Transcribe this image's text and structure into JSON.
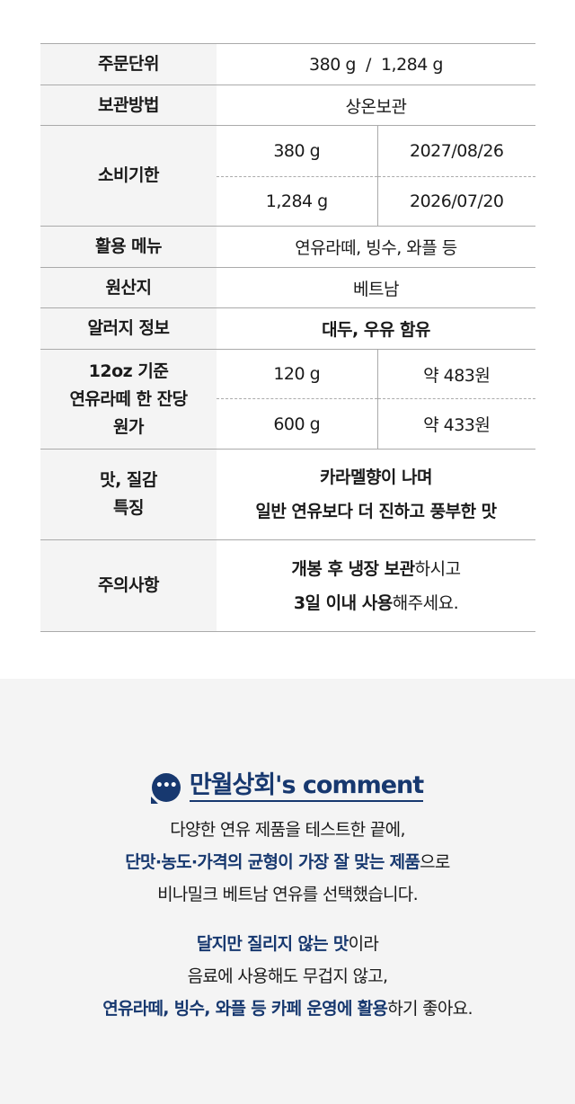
{
  "table": {
    "order_unit": {
      "label": "주문단위",
      "value": "380 g  /  1,284 g"
    },
    "storage": {
      "label": "보관방법",
      "value": "상온보관"
    },
    "expiry": {
      "label": "소비기한",
      "rows": [
        {
          "size": "380 g",
          "date": "2027/08/26"
        },
        {
          "size": "1,284 g",
          "date": "2026/07/20"
        }
      ]
    },
    "menu": {
      "label": "활용 메뉴",
      "value": "연유라떼, 빙수, 와플 등"
    },
    "origin": {
      "label": "원산지",
      "value": "베트남"
    },
    "allergy": {
      "label": "알러지 정보",
      "value": "대두, 우유 함유"
    },
    "cost": {
      "label_lines": [
        "12oz 기준",
        "연유라떼 한 잔당",
        "원가"
      ],
      "rows": [
        {
          "size": "120 g",
          "price": "약 483원"
        },
        {
          "size": "600 g",
          "price": "약 433원"
        }
      ]
    },
    "taste": {
      "label_lines": [
        "맛, 질감",
        "특징"
      ],
      "lines": [
        "카라멜향이 나며",
        "일반 연유보다 더 진하고 풍부한 맛"
      ]
    },
    "caution": {
      "label": "주의사항",
      "line1_bold": "개봉 후 냉장 보관",
      "line1_rest": "하시고",
      "line2_bold": "3일 이내 사용",
      "line2_rest": "해주세요."
    }
  },
  "comment": {
    "icon": "speech-bubble-icon",
    "title": "만월상회's comment",
    "accent": "#17386f",
    "p1": {
      "l1": "다양한 연유 제품을 테스트한 끝에,",
      "l2_bold": "단맛·농도·가격의 균형이 가장 잘 맞는 제품",
      "l2_rest": "으로",
      "l3": "비나밀크 베트남 연유를 선택했습니다."
    },
    "p2": {
      "l1_bold": "달지만 질리지 않는 맛",
      "l1_rest": "이라",
      "l2": "음료에 사용해도 무겁지 않고,",
      "l3_bold": "연유라떼, 빙수, 와플 등 카페 운영에 활용",
      "l3_rest": "하기 좋아요."
    }
  }
}
